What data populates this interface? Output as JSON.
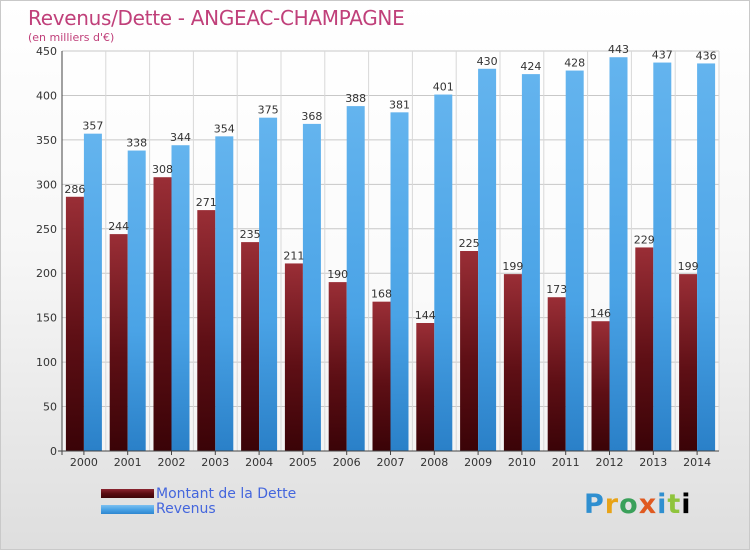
{
  "header": {
    "title": "Revenus/Dette - ANGEAC-CHAMPAGNE",
    "subtitle": "(en milliers d'€)"
  },
  "legend": {
    "items": [
      {
        "label": "Montant de la Dette",
        "color": "#6b1218"
      },
      {
        "label": "Revenus",
        "color": "#4aa3e6"
      }
    ]
  },
  "brand": {
    "letters": [
      "P",
      "r",
      "o",
      "x",
      "i",
      "t",
      "i"
    ]
  },
  "chart_data": {
    "type": "bar",
    "title": "Revenus/Dette - ANGEAC-CHAMPAGNE",
    "subtitle": "(en milliers d'€)",
    "categories": [
      "2000",
      "2001",
      "2002",
      "2003",
      "2004",
      "2005",
      "2006",
      "2007",
      "2008",
      "2009",
      "2010",
      "2011",
      "2012",
      "2013",
      "2014"
    ],
    "series": [
      {
        "name": "Montant de la Dette",
        "color": "#6b1218",
        "values": [
          286,
          244,
          308,
          271,
          235,
          211,
          190,
          168,
          144,
          225,
          199,
          173,
          146,
          229,
          199
        ]
      },
      {
        "name": "Revenus",
        "color": "#4aa3e6",
        "values": [
          357,
          338,
          344,
          354,
          375,
          368,
          388,
          381,
          401,
          430,
          424,
          428,
          443,
          437,
          436
        ]
      }
    ],
    "ylim": [
      0,
      450
    ],
    "yticks": [
      0,
      50,
      100,
      150,
      200,
      250,
      300,
      350,
      400,
      450
    ],
    "grid": true,
    "legend_position": "bottom-left"
  }
}
